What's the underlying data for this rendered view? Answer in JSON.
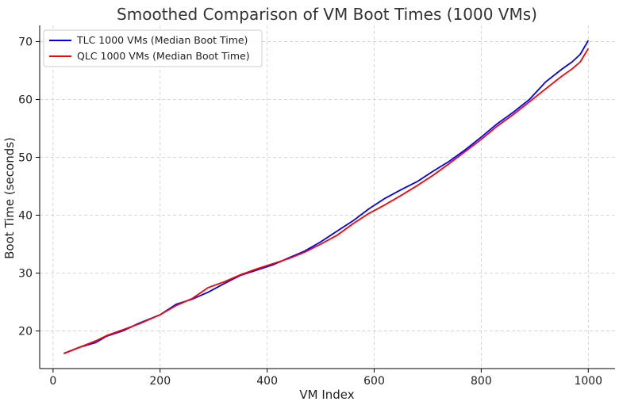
{
  "chart_data": {
    "type": "line",
    "title": "Smoothed Comparison of VM Boot Times (1000 VMs)",
    "xlabel": "VM Index",
    "ylabel": "Boot Time (seconds)",
    "xlim": [
      -25,
      1050
    ],
    "ylim": [
      13.5,
      72.8
    ],
    "xticks": [
      0,
      200,
      400,
      600,
      800,
      1000
    ],
    "yticks": [
      20,
      30,
      40,
      50,
      60,
      70
    ],
    "grid": true,
    "legend_position": "top-left",
    "series": [
      {
        "name": "TLC 1000 VMs (Median Boot Time)",
        "color": "#0000ff",
        "x": [
          20,
          50,
          80,
          100,
          130,
          160,
          200,
          230,
          260,
          290,
          320,
          350,
          380,
          410,
          440,
          470,
          500,
          530,
          560,
          590,
          620,
          650,
          680,
          710,
          740,
          770,
          800,
          830,
          860,
          890,
          920,
          950,
          970,
          985,
          1000
        ],
        "y": [
          16.1,
          17.2,
          18.0,
          19.1,
          20.0,
          21.3,
          22.8,
          24.6,
          25.5,
          26.7,
          28.2,
          29.6,
          30.5,
          31.4,
          32.6,
          33.8,
          35.4,
          37.2,
          39.0,
          41.1,
          42.9,
          44.4,
          45.8,
          47.6,
          49.3,
          51.3,
          53.5,
          55.8,
          57.8,
          60.0,
          63.0,
          65.2,
          66.5,
          67.8,
          70.2
        ]
      },
      {
        "name": "QLC 1000 VMs (Median Boot Time)",
        "color": "#ff0000",
        "x": [
          20,
          50,
          80,
          100,
          130,
          160,
          200,
          230,
          260,
          290,
          320,
          350,
          380,
          410,
          440,
          470,
          500,
          530,
          560,
          590,
          620,
          650,
          680,
          710,
          740,
          770,
          800,
          830,
          860,
          890,
          920,
          950,
          970,
          985,
          1000
        ],
        "y": [
          16.1,
          17.2,
          18.3,
          19.2,
          20.2,
          21.2,
          22.8,
          24.4,
          25.6,
          27.5,
          28.5,
          29.7,
          30.7,
          31.6,
          32.5,
          33.6,
          35.0,
          36.5,
          38.5,
          40.3,
          41.8,
          43.4,
          45.1,
          46.9,
          48.9,
          51.0,
          53.1,
          55.4,
          57.4,
          59.6,
          61.8,
          64.0,
          65.3,
          66.5,
          68.8
        ]
      }
    ]
  }
}
